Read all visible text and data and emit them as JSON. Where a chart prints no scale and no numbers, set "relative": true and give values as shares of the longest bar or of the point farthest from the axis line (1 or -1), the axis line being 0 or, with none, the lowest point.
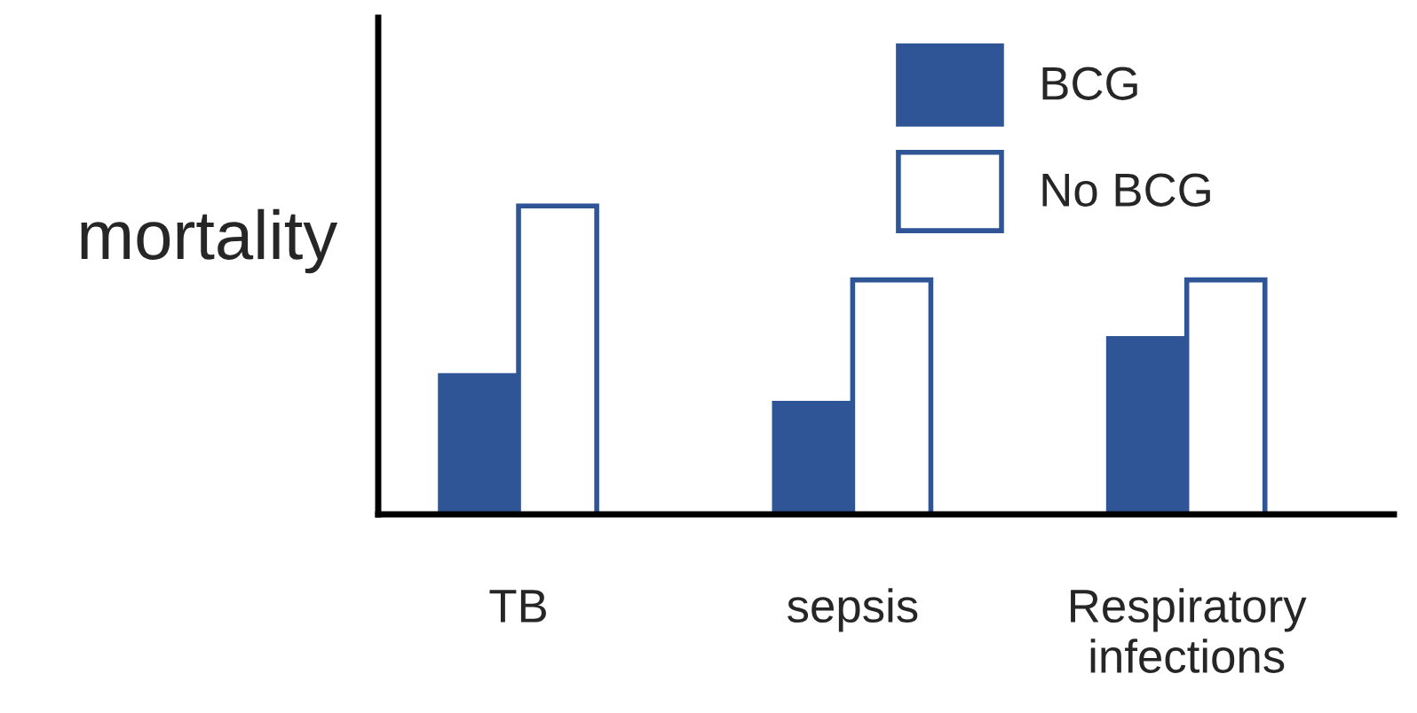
{
  "chart_data": {
    "type": "bar",
    "relative": true,
    "ylabel": "mortality",
    "categories": [
      "TB",
      "sepsis",
      "Respiratory\ninfections"
    ],
    "series": [
      {
        "name": "BCG",
        "color": "#2f5597",
        "values": [
          0.45,
          0.36,
          0.57
        ]
      },
      {
        "name": "No BCG",
        "color": "#ffffff",
        "values": [
          1,
          0.76,
          0.76
        ]
      }
    ],
    "legend": "top right",
    "grid": false
  }
}
